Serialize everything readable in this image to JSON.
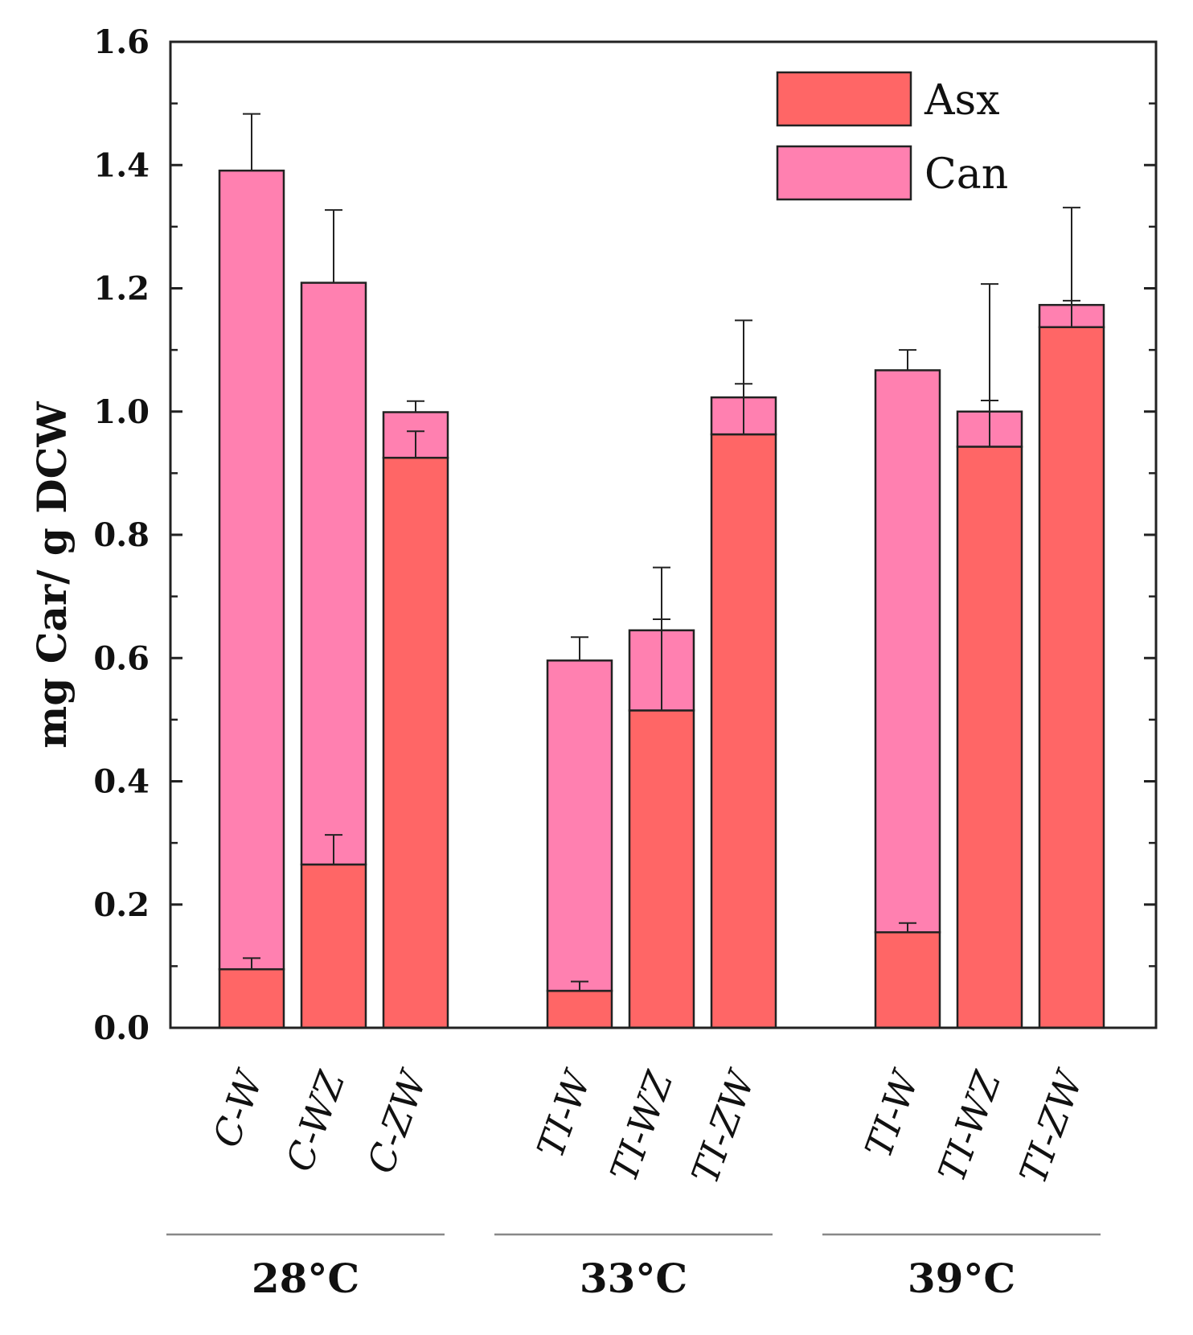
{
  "chart_data": {
    "type": "bar",
    "stacked": true,
    "ylabel": "mg Car/ g DCW",
    "xlabel": "",
    "ylim": [
      0,
      1.6
    ],
    "yticks": [
      "0.0",
      "0.2",
      "0.4",
      "0.6",
      "0.8",
      "1.0",
      "1.2",
      "1.4",
      "1.6"
    ],
    "categories": [
      "C-W",
      "C-WZ",
      "C-ZW",
      "TI-W",
      "TI-WZ",
      "TI-ZW",
      "TI-W",
      "TI-WZ",
      "TI-ZW"
    ],
    "groups": [
      {
        "label": "28°C",
        "categories": [
          0,
          1,
          2
        ]
      },
      {
        "label": "33°C",
        "categories": [
          3,
          4,
          5
        ]
      },
      {
        "label": "39°C",
        "categories": [
          6,
          7,
          8
        ]
      }
    ],
    "series": [
      {
        "name": "Asx",
        "color": "#ff6666",
        "values": [
          0.095,
          0.265,
          0.925,
          0.06,
          0.515,
          0.963,
          0.155,
          0.943,
          1.137
        ],
        "errors": [
          0.018,
          0.048,
          0.043,
          0.015,
          0.148,
          0.082,
          0.015,
          0.075,
          0.043
        ]
      },
      {
        "name": "Can",
        "color": "#ff80b0",
        "values": [
          1.296,
          0.944,
          0.074,
          0.536,
          0.13,
          0.06,
          0.912,
          0.057,
          0.036
        ],
        "errors": [
          0.092,
          0.118,
          0.018,
          0.038,
          0.102,
          0.125,
          0.033,
          0.207,
          0.158
        ]
      }
    ],
    "legend": "top-right"
  }
}
